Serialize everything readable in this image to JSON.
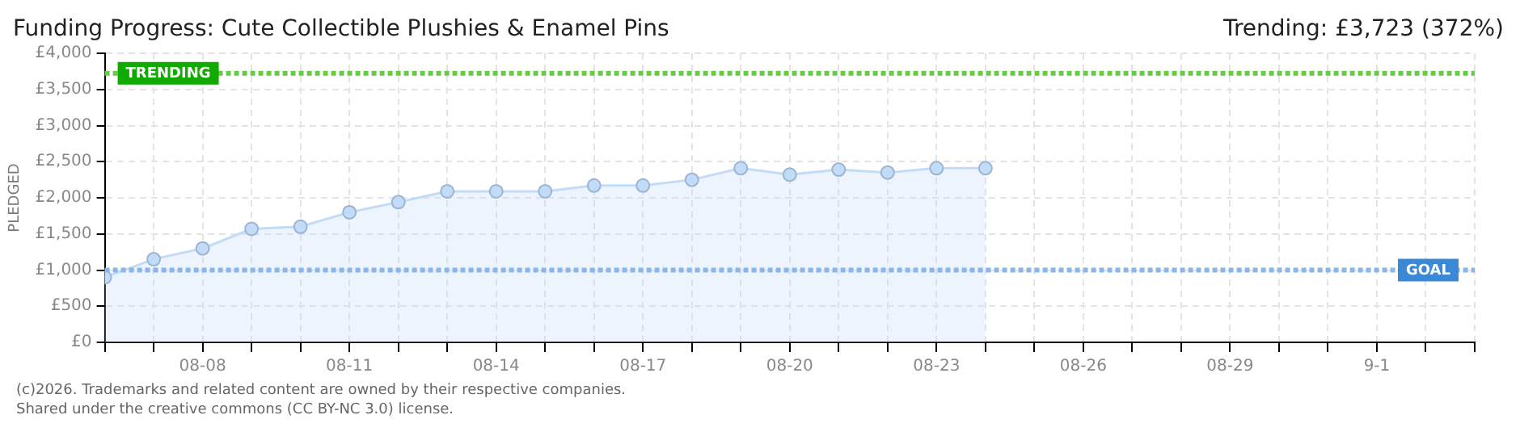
{
  "chart_data": {
    "type": "area",
    "title": "Funding Progress: Cute Collectible Plushies & Enamel Pins",
    "subtitle": "Trending:  £3,723 (372%)",
    "ylabel": "PLEDGED",
    "x": [
      "--08-06",
      "--08-07",
      "--08-08",
      "--08-09",
      "--08-10",
      "--08-11",
      "--08-12",
      "--08-13",
      "--08-14",
      "--08-15",
      "--08-16",
      "--08-17",
      "--08-18",
      "--08-19",
      "--08-20",
      "--08-21",
      "--08-22",
      "--08-23",
      "--08-24"
    ],
    "series": [
      {
        "color": "#c2dcf7",
        "values": [
          900,
          1150,
          1300,
          1570,
          1600,
          1800,
          1940,
          2090,
          2090,
          2090,
          2170,
          2170,
          2250,
          2410,
          2320,
          2390,
          2350,
          2410,
          2410
        ]
      }
    ],
    "xlim": [
      "--08-06",
      "--09-03"
    ],
    "xticks": [
      {
        "value": "--08-06",
        "label": null
      },
      {
        "value": "--08-07",
        "label": null
      },
      {
        "value": "--08-08",
        "label": "08-08"
      },
      {
        "value": "--08-09",
        "label": null
      },
      {
        "value": "--08-10",
        "label": null
      },
      {
        "value": "--08-11",
        "label": "08-11"
      },
      {
        "value": "--08-12",
        "label": null
      },
      {
        "value": "--08-13",
        "label": null
      },
      {
        "value": "--08-14",
        "label": "08-14"
      },
      {
        "value": "--08-15",
        "label": null
      },
      {
        "value": "--08-16",
        "label": null
      },
      {
        "value": "--08-17",
        "label": "08-17"
      },
      {
        "value": "--08-18",
        "label": null
      },
      {
        "value": "--08-19",
        "label": null
      },
      {
        "value": "--08-20",
        "label": "08-20"
      },
      {
        "value": "--08-21",
        "label": null
      },
      {
        "value": "--08-22",
        "label": null
      },
      {
        "value": "--08-23",
        "label": "08-23"
      },
      {
        "value": "--08-24",
        "label": null
      },
      {
        "value": "--08-25",
        "label": null
      },
      {
        "value": "--08-26",
        "label": "08-26"
      },
      {
        "value": "--08-27",
        "label": null
      },
      {
        "value": "--08-28",
        "label": null
      },
      {
        "value": "--08-29",
        "label": "08-29"
      },
      {
        "value": "--08-30",
        "label": null
      },
      {
        "value": "--08-31",
        "label": null
      },
      {
        "value": "--09-01",
        "label": "9-1"
      },
      {
        "value": "--09-02",
        "label": null
      },
      {
        "value": "--09-03",
        "label": null
      }
    ],
    "ylim": [
      0,
      4000
    ],
    "yticks": [
      {
        "value": 0,
        "label": "£0"
      },
      {
        "value": 500,
        "label": "£500"
      },
      {
        "value": 1000,
        "label": "£1,000"
      },
      {
        "value": 1500,
        "label": "£1,500"
      },
      {
        "value": 2000,
        "label": "£2,000"
      },
      {
        "value": 2500,
        "label": "£2,500"
      },
      {
        "value": 3000,
        "label": "£3,000"
      },
      {
        "value": 3500,
        "label": "£3,500"
      },
      {
        "value": 4000,
        "label": "£4,000"
      }
    ],
    "ref_lines": [
      {
        "axis": "y",
        "value": 3723,
        "label": "TRENDING",
        "color": "#66cc44",
        "line_style": "dotted"
      },
      {
        "axis": "y",
        "value": 1000,
        "label": "GOAL",
        "color": "#8ab6e8",
        "line_style": "dotted"
      }
    ],
    "grid": true,
    "legend": false,
    "marker": "circle",
    "annotations": [
      "(c)2026. Trademarks and related content are owned by their respective companies.",
      "Shared under the creative commons (CC BY-NC 3.0) license."
    ]
  }
}
